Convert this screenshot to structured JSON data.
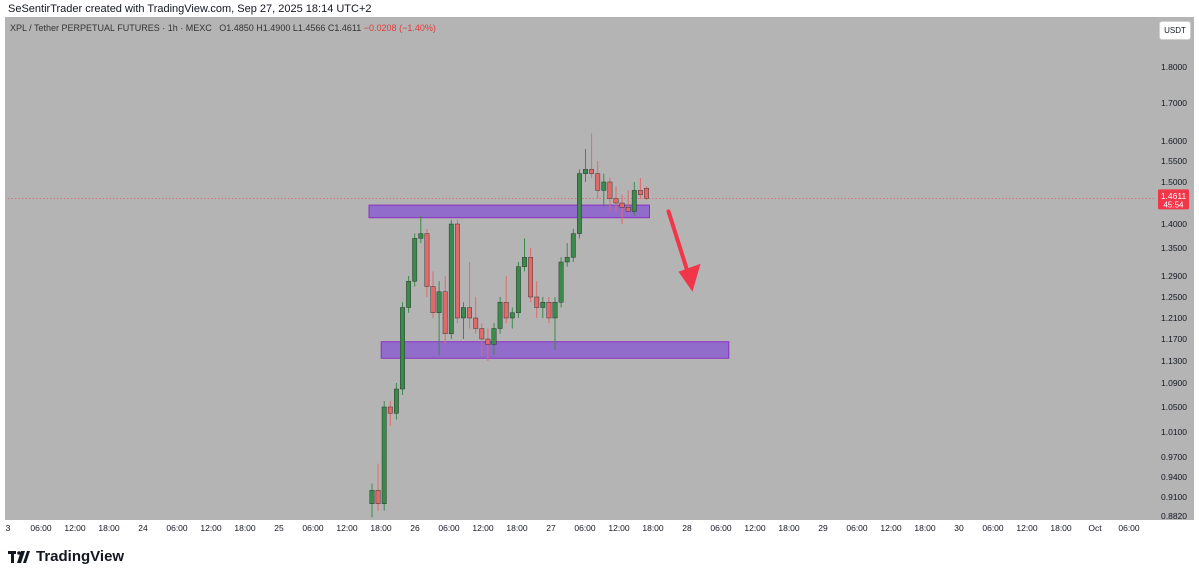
{
  "header": {
    "credit": "SeSentirTrader created with TradingView.com, Sep 27, 2025 18:14 UTC+2"
  },
  "symbol": {
    "name": "XPL / Tether PERPETUAL FUTURES · 1h · MEXC",
    "o": "O1.4850",
    "h": "H1.4900",
    "l": "L1.4566",
    "c": "C1.4611",
    "change": "−0.0208 (−1.40%)"
  },
  "currency_button": "USDT",
  "footer": {
    "logo_text": "TradingView"
  },
  "colors": {
    "background": "#b4b4b4",
    "bull": "#3b8a4b",
    "bear": "#e06a6a",
    "zone_fill": "#8c5fcf",
    "zone_border": "#8a2fc4",
    "arrow": "#f2364a",
    "price_tag": "#f2364a"
  },
  "chart_data": {
    "type": "candlestick",
    "y_ticks": [
      "1.8000",
      "1.7000",
      "1.6000",
      "1.5500",
      "1.5000",
      "1.4000",
      "1.3500",
      "1.2900",
      "1.2500",
      "1.2100",
      "1.1700",
      "1.1300",
      "1.0900",
      "1.0500",
      "1.0100",
      "0.9700",
      "0.9400",
      "0.9100",
      "0.8820"
    ],
    "x_ticks": [
      "3",
      "06:00",
      "12:00",
      "18:00",
      "24",
      "06:00",
      "12:00",
      "18:00",
      "25",
      "06:00",
      "12:00",
      "18:00",
      "26",
      "06:00",
      "12:00",
      "18:00",
      "27",
      "06:00",
      "12:00",
      "18:00",
      "28",
      "06:00",
      "12:00",
      "18:00",
      "29",
      "06:00",
      "12:00",
      "18:00",
      "30",
      "06:00",
      "12:00",
      "18:00",
      "Oct",
      "06:00"
    ],
    "current_price": "1.4611",
    "countdown": "45:54",
    "candles": [
      {
        "o": 0.9,
        "h": 0.93,
        "l": 0.88,
        "c": 0.92
      },
      {
        "o": 0.92,
        "h": 0.96,
        "l": 0.89,
        "c": 0.9
      },
      {
        "o": 0.9,
        "h": 1.06,
        "l": 0.89,
        "c": 1.05
      },
      {
        "o": 1.05,
        "h": 1.06,
        "l": 1.02,
        "c": 1.04
      },
      {
        "o": 1.04,
        "h": 1.09,
        "l": 1.03,
        "c": 1.08
      },
      {
        "o": 1.08,
        "h": 1.24,
        "l": 1.07,
        "c": 1.23
      },
      {
        "o": 1.23,
        "h": 1.29,
        "l": 1.22,
        "c": 1.28
      },
      {
        "o": 1.28,
        "h": 1.38,
        "l": 1.27,
        "c": 1.37
      },
      {
        "o": 1.37,
        "h": 1.42,
        "l": 1.36,
        "c": 1.38
      },
      {
        "o": 1.38,
        "h": 1.39,
        "l": 1.25,
        "c": 1.27
      },
      {
        "o": 1.27,
        "h": 1.3,
        "l": 1.21,
        "c": 1.22
      },
      {
        "o": 1.22,
        "h": 1.28,
        "l": 1.14,
        "c": 1.26
      },
      {
        "o": 1.26,
        "h": 1.29,
        "l": 1.16,
        "c": 1.18
      },
      {
        "o": 1.18,
        "h": 1.41,
        "l": 1.17,
        "c": 1.4
      },
      {
        "o": 1.4,
        "h": 1.41,
        "l": 1.2,
        "c": 1.21
      },
      {
        "o": 1.21,
        "h": 1.24,
        "l": 1.17,
        "c": 1.23
      },
      {
        "o": 1.23,
        "h": 1.32,
        "l": 1.19,
        "c": 1.21
      },
      {
        "o": 1.21,
        "h": 1.25,
        "l": 1.18,
        "c": 1.19
      },
      {
        "o": 1.19,
        "h": 1.2,
        "l": 1.14,
        "c": 1.17
      },
      {
        "o": 1.17,
        "h": 1.19,
        "l": 1.13,
        "c": 1.16
      },
      {
        "o": 1.16,
        "h": 1.2,
        "l": 1.14,
        "c": 1.19
      },
      {
        "o": 1.19,
        "h": 1.25,
        "l": 1.18,
        "c": 1.24
      },
      {
        "o": 1.24,
        "h": 1.29,
        "l": 1.2,
        "c": 1.21
      },
      {
        "o": 1.21,
        "h": 1.23,
        "l": 1.19,
        "c": 1.22
      },
      {
        "o": 1.22,
        "h": 1.32,
        "l": 1.21,
        "c": 1.31
      },
      {
        "o": 1.31,
        "h": 1.37,
        "l": 1.3,
        "c": 1.33
      },
      {
        "o": 1.33,
        "h": 1.35,
        "l": 1.24,
        "c": 1.25
      },
      {
        "o": 1.25,
        "h": 1.28,
        "l": 1.21,
        "c": 1.23
      },
      {
        "o": 1.23,
        "h": 1.25,
        "l": 1.21,
        "c": 1.24
      },
      {
        "o": 1.24,
        "h": 1.25,
        "l": 1.2,
        "c": 1.21
      },
      {
        "o": 1.21,
        "h": 1.25,
        "l": 1.15,
        "c": 1.24
      },
      {
        "o": 1.24,
        "h": 1.33,
        "l": 1.23,
        "c": 1.32
      },
      {
        "o": 1.32,
        "h": 1.36,
        "l": 1.31,
        "c": 1.33
      },
      {
        "o": 1.33,
        "h": 1.39,
        "l": 1.32,
        "c": 1.38
      },
      {
        "o": 1.38,
        "h": 1.53,
        "l": 1.37,
        "c": 1.52
      },
      {
        "o": 1.52,
        "h": 1.58,
        "l": 1.5,
        "c": 1.53
      },
      {
        "o": 1.53,
        "h": 1.62,
        "l": 1.51,
        "c": 1.52
      },
      {
        "o": 1.52,
        "h": 1.55,
        "l": 1.46,
        "c": 1.48
      },
      {
        "o": 1.48,
        "h": 1.52,
        "l": 1.44,
        "c": 1.5
      },
      {
        "o": 1.5,
        "h": 1.51,
        "l": 1.43,
        "c": 1.46
      },
      {
        "o": 1.46,
        "h": 1.49,
        "l": 1.43,
        "c": 1.45
      },
      {
        "o": 1.45,
        "h": 1.47,
        "l": 1.4,
        "c": 1.44
      },
      {
        "o": 1.44,
        "h": 1.48,
        "l": 1.43,
        "c": 1.43
      },
      {
        "o": 1.43,
        "h": 1.5,
        "l": 1.42,
        "c": 1.48
      },
      {
        "o": 1.48,
        "h": 1.51,
        "l": 1.46,
        "c": 1.47
      },
      {
        "o": 1.485,
        "h": 1.49,
        "l": 1.4566,
        "c": 1.4611
      }
    ],
    "zones": [
      {
        "from_candle": 0,
        "to_candle": 45,
        "top": 1.445,
        "bottom": 1.415
      },
      {
        "from_candle": 2,
        "to_candle": 58,
        "top": 1.165,
        "bottom": 1.135
      }
    ]
  }
}
